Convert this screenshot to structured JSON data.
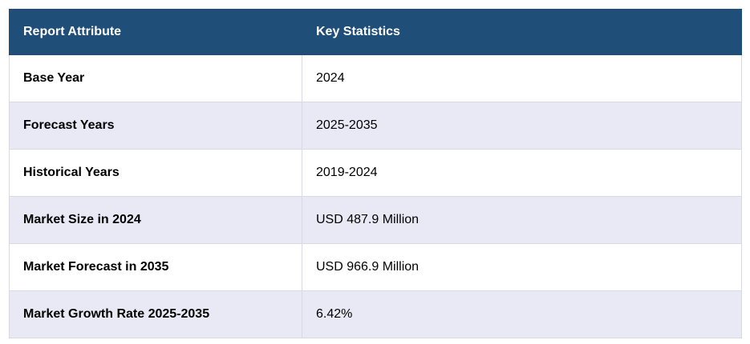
{
  "table": {
    "header": [
      "Report Attribute",
      "Key Statistics"
    ],
    "rows": [
      [
        "Base Year",
        "2024"
      ],
      [
        "Forecast Years",
        "2025-2035"
      ],
      [
        "Historical Years",
        "2019-2024"
      ],
      [
        "Market Size in 2024",
        "USD 487.9 Million"
      ],
      [
        "Market Forecast in 2035",
        "USD 966.9 Million"
      ],
      [
        "Market Growth Rate 2025-2035",
        "6.42%"
      ]
    ]
  }
}
